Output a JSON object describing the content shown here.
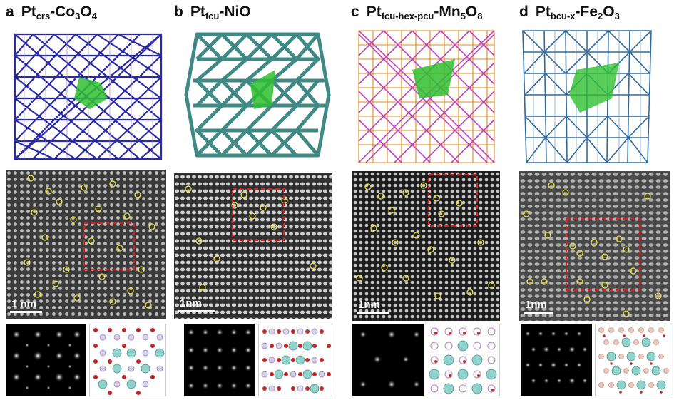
{
  "panels": [
    {
      "letter": "a",
      "pt": "Pt",
      "sub": "crs",
      "compound_main": "-Co",
      "compound_sub1": "3",
      "compound_mid": "O",
      "compound_sub2": "4",
      "compound_end": "",
      "scale": "1 nm",
      "colors": {
        "frame": "#2a2aa8",
        "fill": "#ffffff",
        "accent": "#a08ab8"
      }
    },
    {
      "letter": "b",
      "pt": "Pt",
      "sub": "fcu",
      "compound_main": "-NiO",
      "compound_sub1": "",
      "compound_mid": "",
      "compound_sub2": "",
      "compound_end": "",
      "scale": "1nm",
      "colors": {
        "frame": "#3f8a84",
        "fill": "#ffffff",
        "accent": "#5fa8a0"
      }
    },
    {
      "letter": "c",
      "pt": "Pt",
      "sub": "fcu-hex-pcu",
      "compound_main": "-Mn",
      "compound_sub1": "5",
      "compound_mid": "O",
      "compound_sub2": "8",
      "compound_end": "",
      "scale": "1nm",
      "colors": {
        "frame": "#c040c0",
        "fill": "#ffffff",
        "accent": "#e08a1a"
      }
    },
    {
      "letter": "d",
      "pt": "Pt",
      "sub": "bcu-x",
      "compound_main": "-Fe",
      "compound_sub1": "2",
      "compound_mid": "O",
      "compound_sub2": "3",
      "compound_end": "",
      "scale": "1nm",
      "colors": {
        "frame": "#2e6aa0",
        "fill": "#ffffff",
        "accent": "#4a86b8"
      }
    }
  ],
  "colors": {
    "highlight_polyhedron": "#2fbf2f",
    "circle_markers": "#e6e64a",
    "dashed_box": "#d62020",
    "atom_cyan": "#8fd3cc",
    "atom_red": "#c0282a"
  }
}
